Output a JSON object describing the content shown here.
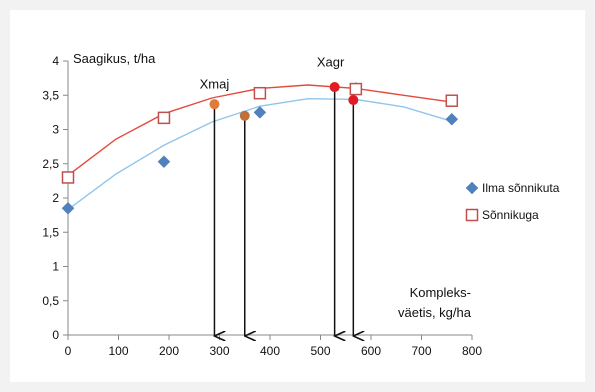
{
  "chart_data": {
    "type": "scatter",
    "ylabel": "Saagikus, t/ha",
    "xlabel_line1": "Kompleks-",
    "xlabel_line2": "väetis, kg/ha",
    "xlim": [
      0,
      800
    ],
    "ylim": [
      0,
      4
    ],
    "x_ticks": [
      0,
      100,
      200,
      300,
      400,
      500,
      600,
      700,
      800
    ],
    "x_tick_labels": [
      "0",
      "100",
      "200",
      "300",
      "400",
      "500",
      "600",
      "700",
      "800"
    ],
    "y_ticks": [
      0,
      0.5,
      1,
      1.5,
      2,
      2.5,
      3,
      3.5,
      4
    ],
    "y_tick_labels": [
      "0",
      "0,5",
      "1",
      "1,5",
      "2",
      "2,5",
      "3",
      "3,5",
      "4"
    ],
    "grid": false,
    "legend_position": "right",
    "series": [
      {
        "name": "Ilma sõnnikuta",
        "marker": "diamond",
        "color": "#4f81bd",
        "trend_color": "#92c5eb",
        "x": [
          0,
          190,
          380,
          570,
          760
        ],
        "y": [
          1.85,
          2.53,
          3.25,
          3.6,
          3.15
        ],
        "trend_x": [
          0,
          95,
          190,
          285,
          380,
          475,
          570,
          665,
          760
        ],
        "trend_y": [
          1.83,
          2.35,
          2.77,
          3.11,
          3.34,
          3.45,
          3.44,
          3.33,
          3.12
        ]
      },
      {
        "name": "Sõnnikuga",
        "marker": "square-open",
        "color": "#c0504d",
        "trend_color": "#e34a3c",
        "x": [
          0,
          190,
          380,
          570,
          760
        ],
        "y": [
          2.3,
          3.17,
          3.53,
          3.59,
          3.42
        ],
        "trend_x": [
          0,
          95,
          190,
          285,
          380,
          475,
          570,
          665,
          760
        ],
        "trend_y": [
          2.33,
          2.86,
          3.23,
          3.46,
          3.6,
          3.65,
          3.6,
          3.5,
          3.4
        ]
      }
    ],
    "optimum_points": [
      {
        "x": 290,
        "y": 3.37,
        "color": "#e07b39",
        "group": "Xmaj"
      },
      {
        "x": 350,
        "y": 3.2,
        "color": "#c0703a",
        "group": "Xmaj"
      },
      {
        "x": 528,
        "y": 3.62,
        "color": "#e01b24",
        "group": "Xagr"
      },
      {
        "x": 565,
        "y": 3.43,
        "color": "#e01b24",
        "group": "Xagr"
      }
    ],
    "annotations": [
      {
        "text": "Xmaj",
        "x": 290,
        "y": 3.6
      },
      {
        "text": "Xagr",
        "x": 520,
        "y": 3.92
      }
    ]
  }
}
